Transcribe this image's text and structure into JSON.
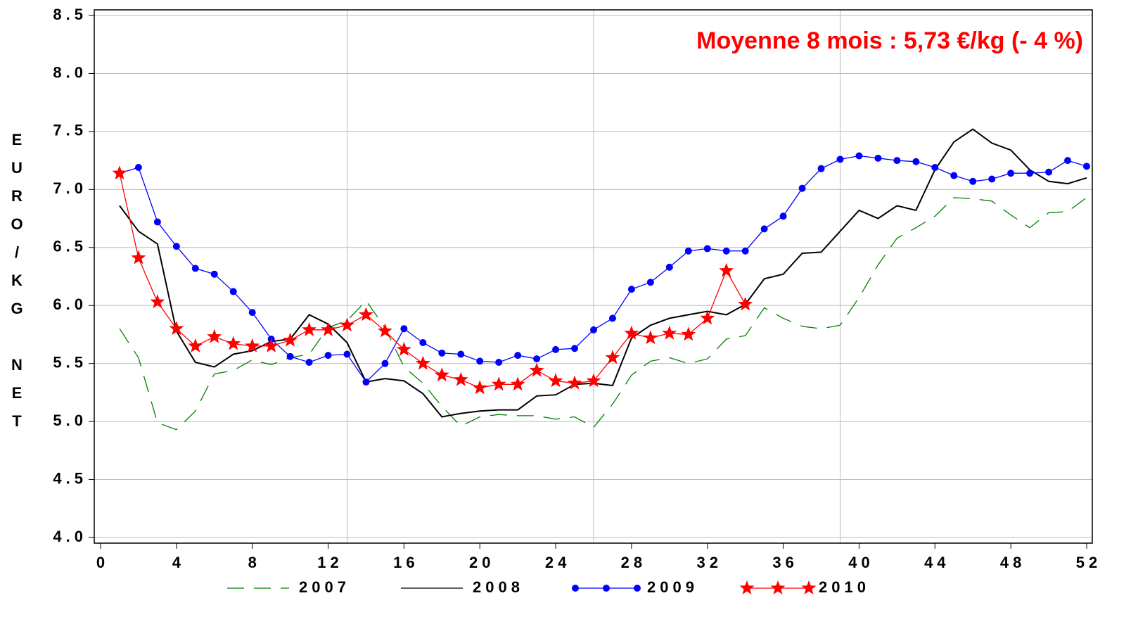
{
  "chart_data": {
    "type": "line",
    "annotation": "Moyenne 8 mois : 5,73 €/kg (- 4 %)",
    "y_label": "EURO/KG NET",
    "x": [
      1,
      2,
      3,
      4,
      5,
      6,
      7,
      8,
      9,
      10,
      11,
      12,
      13,
      14,
      15,
      16,
      17,
      18,
      19,
      20,
      21,
      22,
      23,
      24,
      25,
      26,
      27,
      28,
      29,
      30,
      31,
      32,
      33,
      34,
      35,
      36,
      37,
      38,
      39,
      40,
      41,
      42,
      43,
      44,
      45,
      46,
      47,
      48,
      49,
      50,
      51,
      52
    ],
    "xlim": [
      0,
      52
    ],
    "xticks": [
      0,
      4,
      8,
      {
        "value": 12,
        "label": "12"
      },
      16,
      20,
      24,
      28,
      32,
      36,
      40,
      44,
      48,
      52
    ],
    "xgrid": [
      13,
      26,
      39
    ],
    "ylim": [
      4,
      8.5
    ],
    "yticks": [
      {
        "value": 4,
        "label": "4.0"
      },
      4.5,
      {
        "value": 5,
        "label": "5.0"
      },
      5.5,
      {
        "value": 6,
        "label": "6.0"
      },
      6.5,
      {
        "value": 7,
        "label": "7.0"
      },
      7.5,
      {
        "value": 8,
        "label": "8.0"
      },
      8.5
    ],
    "grid": true,
    "series": [
      {
        "name": "2007",
        "color": "#008000",
        "style": "dashed",
        "values": [
          5.8,
          5.55,
          4.99,
          4.93,
          5.09,
          5.41,
          5.44,
          5.53,
          5.49,
          5.55,
          5.58,
          5.81,
          5.87,
          6.04,
          5.81,
          5.47,
          5.33,
          5.13,
          4.96,
          5.04,
          5.06,
          5.05,
          5.05,
          5.02,
          5.04,
          4.95,
          5.15,
          5.4,
          5.52,
          5.55,
          5.5,
          5.54,
          5.71,
          5.74,
          5.98,
          5.89,
          5.82,
          5.8,
          5.83,
          6.07,
          6.35,
          6.58,
          6.67,
          6.77,
          6.93,
          6.92,
          6.9,
          6.78,
          6.67,
          6.8,
          6.81,
          6.93
        ]
      },
      {
        "name": "2008",
        "color": "#000000",
        "style": "solid",
        "values": [
          6.86,
          6.64,
          6.53,
          5.78,
          5.51,
          5.47,
          5.58,
          5.61,
          5.69,
          5.71,
          5.92,
          5.84,
          5.68,
          5.34,
          5.37,
          5.35,
          5.24,
          5.04,
          5.07,
          5.09,
          5.1,
          5.1,
          5.22,
          5.23,
          5.32,
          5.33,
          5.31,
          5.72,
          5.83,
          5.89,
          5.92,
          5.95,
          5.92,
          6.01,
          6.23,
          6.27,
          6.45,
          6.46,
          6.64,
          6.82,
          6.75,
          6.86,
          6.82,
          7.17,
          7.41,
          7.52,
          7.4,
          7.34,
          7.17,
          7.07,
          7.05,
          7.1
        ]
      },
      {
        "name": "2009",
        "color": "#0000ff",
        "style": "solid",
        "marker": "circle",
        "values": [
          7.14,
          7.19,
          6.72,
          6.51,
          6.32,
          6.27,
          6.12,
          5.94,
          5.71,
          5.56,
          5.51,
          5.57,
          5.58,
          5.34,
          5.5,
          5.8,
          5.68,
          5.59,
          5.58,
          5.52,
          5.51,
          5.57,
          5.54,
          5.62,
          5.63,
          5.79,
          5.89,
          6.14,
          6.2,
          6.33,
          6.47,
          6.49,
          6.47,
          6.47,
          6.66,
          6.77,
          7.01,
          7.18,
          7.26,
          7.29,
          7.27,
          7.25,
          7.24,
          7.19,
          7.12,
          7.07,
          7.09,
          7.14,
          7.14,
          7.15,
          7.25,
          7.2
        ]
      },
      {
        "name": "2010",
        "color": "#ff0000",
        "style": "solid",
        "marker": "star",
        "values": [
          7.14,
          6.41,
          6.03,
          5.8,
          5.65,
          5.73,
          5.67,
          5.65,
          5.65,
          5.7,
          5.79,
          5.79,
          5.83,
          5.92,
          5.78,
          5.62,
          5.5,
          5.4,
          5.36,
          5.29,
          5.32,
          5.32,
          5.44,
          5.35,
          5.33,
          5.35,
          5.55,
          5.76,
          5.72,
          5.76,
          5.75,
          5.89,
          6.3,
          6.01,
          null,
          null,
          null,
          null,
          null,
          null,
          null,
          null,
          null,
          null,
          null,
          null,
          null,
          null,
          null,
          null,
          null,
          null
        ]
      }
    ]
  }
}
